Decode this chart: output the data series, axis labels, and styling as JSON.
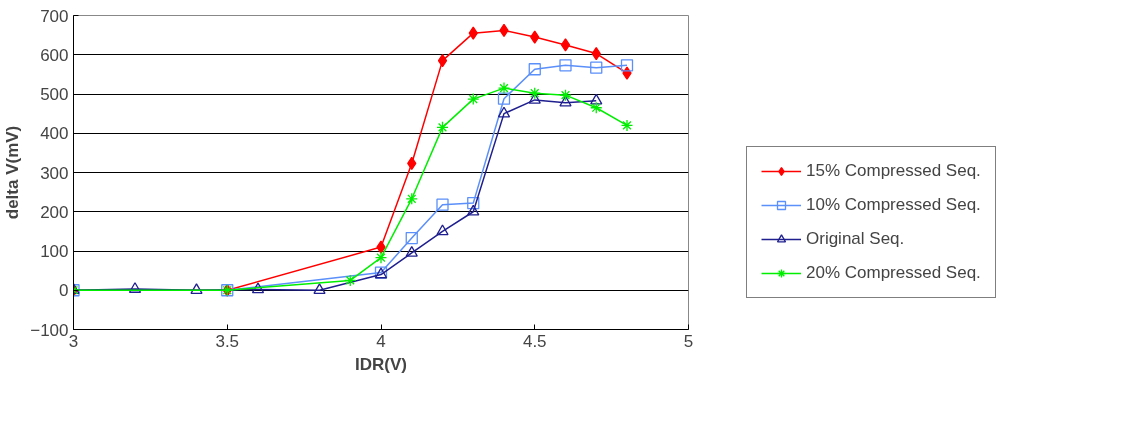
{
  "chart_data": {
    "type": "line",
    "xlabel": "IDR(V)",
    "ylabel": "delta V(mV)",
    "xlim": [
      3,
      5
    ],
    "xticks": [
      3,
      3.5,
      4,
      4.5,
      5
    ],
    "ylim": [
      -100,
      700
    ],
    "yticks": [
      -100,
      0,
      100,
      200,
      300,
      400,
      500,
      600,
      700
    ],
    "grid": "y",
    "legend": "right",
    "line_style": "solid",
    "series": [
      {
        "name": "15% Compressed Seq.",
        "color": "#ff0000",
        "marker": "diamond",
        "x": [
          3,
          3.5,
          4.0,
          4.1,
          4.2,
          4.3,
          4.4,
          4.5,
          4.6,
          4.7,
          4.8
        ],
        "values": [
          0,
          0,
          110,
          323,
          585,
          655,
          662,
          645,
          625,
          603,
          553
        ]
      },
      {
        "name": "10% Compressed Seq.",
        "color": "#5b8ff9",
        "marker": "square",
        "x": [
          3,
          3.5,
          4.0,
          4.1,
          4.2,
          4.3,
          4.4,
          4.5,
          4.6,
          4.7,
          4.8
        ],
        "values": [
          0,
          0,
          45,
          133,
          218,
          222,
          488,
          563,
          573,
          567,
          573
        ]
      },
      {
        "name": "Original Seq.",
        "color": "#1f1f8f",
        "marker": "triangle",
        "x": [
          3,
          3.2,
          3.4,
          3.6,
          3.8,
          4.0,
          4.1,
          4.2,
          4.3,
          4.4,
          4.5,
          4.6,
          4.7
        ],
        "values": [
          0,
          3,
          0,
          2,
          0,
          40,
          95,
          150,
          200,
          450,
          485,
          478,
          483
        ]
      },
      {
        "name": "20% Compressed Seq.",
        "color": "#00ee00",
        "marker": "cross",
        "x": [
          3,
          3.5,
          3.9,
          4.0,
          4.1,
          4.2,
          4.3,
          4.4,
          4.5,
          4.6,
          4.7,
          4.8
        ],
        "values": [
          0,
          0,
          25,
          83,
          233,
          415,
          487,
          515,
          502,
          497,
          465,
          420
        ]
      }
    ]
  }
}
